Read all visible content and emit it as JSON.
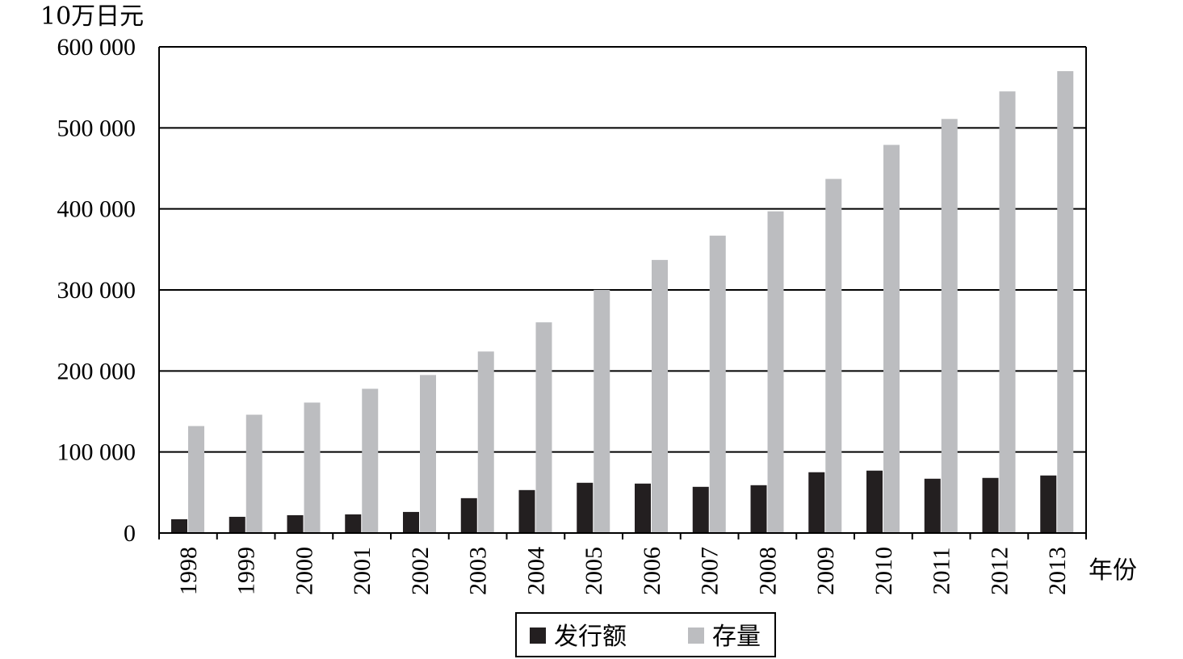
{
  "chart_data": {
    "type": "bar",
    "y_unit_label": "10万日元",
    "xlabel": "年份",
    "ylim": [
      0,
      600000
    ],
    "yticks": [
      0,
      100000,
      200000,
      300000,
      400000,
      500000,
      600000
    ],
    "ytick_labels": [
      "0",
      "100 000",
      "200 000",
      "300 000",
      "400 000",
      "500 000",
      "600 000"
    ],
    "grid": true,
    "legend_position": "bottom-center",
    "categories": [
      "1998",
      "1999",
      "2000",
      "2001",
      "2002",
      "2003",
      "2004",
      "2005",
      "2006",
      "2007",
      "2008",
      "2009",
      "2010",
      "2011",
      "2012",
      "2013"
    ],
    "series": [
      {
        "name": "发行额",
        "color": "#231f20",
        "values": [
          17000,
          20000,
          22000,
          23000,
          26000,
          43000,
          53000,
          62000,
          61000,
          57000,
          59000,
          75000,
          77000,
          67000,
          68000,
          71000
        ]
      },
      {
        "name": "存量",
        "color": "#bcbdc0",
        "values": [
          132000,
          146000,
          161000,
          178000,
          195000,
          224000,
          260000,
          300000,
          337000,
          367000,
          397000,
          437000,
          479000,
          511000,
          545000,
          570000
        ]
      }
    ]
  }
}
